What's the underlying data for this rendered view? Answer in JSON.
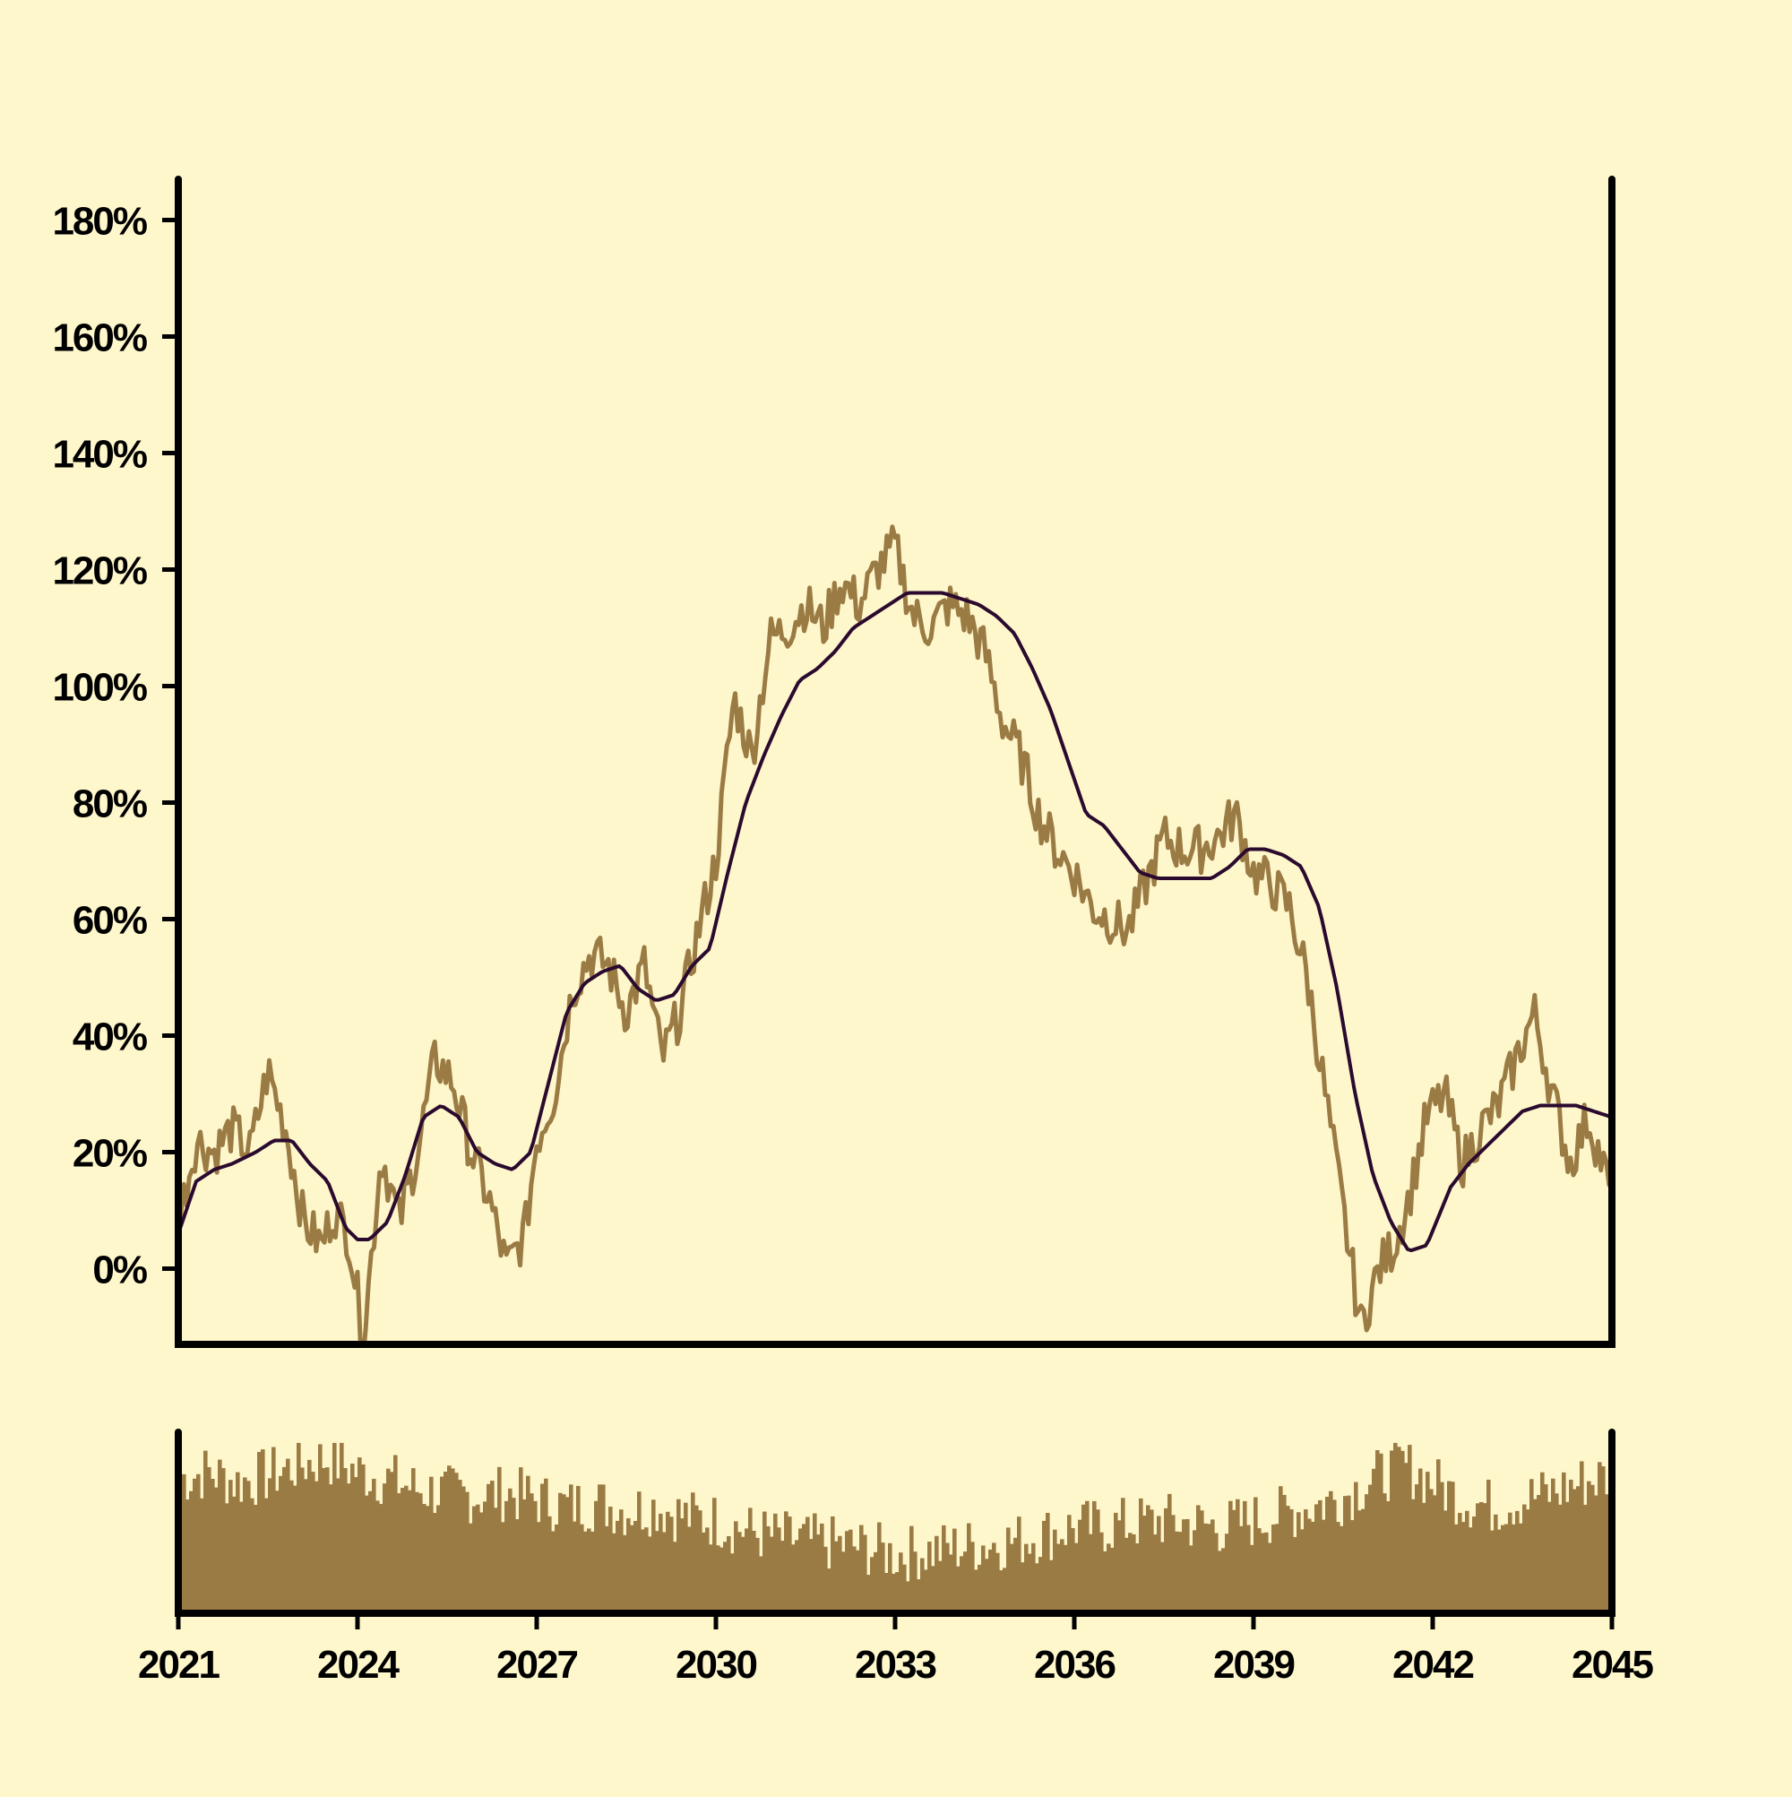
{
  "chart_data": {
    "type": "line",
    "title": "",
    "xlabel": "",
    "ylabel": "",
    "colors": {
      "background": "#fff7cc",
      "price": "#9b7b44",
      "trend": "#2a0a2e",
      "volume": "#9b7b44",
      "axis": "#000000"
    },
    "x_range": [
      2021.0,
      2045.0
    ],
    "ylim": [
      -0.13,
      1.87
    ],
    "y_ticks": [
      0,
      0.2,
      0.4,
      0.6,
      0.8,
      1.0,
      1.2,
      1.4,
      1.6,
      1.8
    ],
    "y_tick_labels": [
      "0%",
      "20%",
      "40%",
      "60%",
      "80%",
      "100%",
      "120%",
      "140%",
      "160%",
      "180%"
    ],
    "x_ticks": [
      2021,
      2024,
      2027,
      2030,
      2033,
      2036,
      2039,
      2042,
      2045
    ],
    "x_tick_labels": [
      "2021",
      "2024",
      "2027",
      "2030",
      "2033",
      "2036",
      "2039",
      "2042",
      "2045"
    ],
    "series": [
      {
        "kind": "price",
        "x": [
          2021.0,
          2021.3,
          2021.6,
          2021.9,
          2022.2,
          2022.5,
          2022.8,
          2023.1,
          2023.4,
          2023.6,
          2023.85,
          2024.1,
          2024.4,
          2024.7,
          2025.0,
          2025.3,
          2025.6,
          2025.9,
          2026.2,
          2026.5,
          2026.8,
          2027.0,
          2027.3,
          2027.6,
          2027.9,
          2028.2,
          2028.5,
          2028.8,
          2029.1,
          2029.4,
          2029.7,
          2030.0,
          2030.3,
          2030.6,
          2030.9,
          2031.2,
          2031.5,
          2031.8,
          2032.1,
          2032.4,
          2032.7,
          2033.0,
          2033.3,
          2033.6,
          2033.9,
          2034.2,
          2034.5,
          2034.8,
          2035.1,
          2035.4,
          2035.7,
          2036.0,
          2036.3,
          2036.6,
          2036.9,
          2037.2,
          2037.5,
          2037.8,
          2038.1,
          2038.4,
          2038.7,
          2039.0,
          2039.3,
          2039.6,
          2039.9,
          2040.2,
          2040.5,
          2040.8,
          2041.1,
          2041.35,
          2041.6,
          2041.9,
          2042.2,
          2042.5,
          2042.8,
          2043.1,
          2043.4,
          2043.7,
          2044.0,
          2044.3,
          2044.6,
          2044.9,
          2045.0
        ],
        "y": [
          0.08,
          0.22,
          0.2,
          0.24,
          0.2,
          0.34,
          0.24,
          0.08,
          0.04,
          0.1,
          0.06,
          -0.12,
          0.2,
          0.08,
          0.2,
          0.36,
          0.32,
          0.2,
          0.12,
          0.0,
          0.06,
          0.22,
          0.3,
          0.48,
          0.54,
          0.52,
          0.44,
          0.52,
          0.36,
          0.44,
          0.58,
          0.7,
          0.98,
          0.88,
          1.08,
          1.1,
          1.14,
          1.1,
          1.18,
          1.14,
          1.2,
          1.24,
          1.12,
          1.1,
          1.14,
          1.12,
          1.06,
          0.94,
          0.88,
          0.78,
          0.72,
          0.68,
          0.62,
          0.6,
          0.58,
          0.66,
          0.74,
          0.72,
          0.72,
          0.74,
          0.78,
          0.68,
          0.66,
          0.62,
          0.5,
          0.3,
          0.1,
          -0.1,
          0.0,
          0.04,
          0.12,
          0.26,
          0.3,
          0.18,
          0.24,
          0.28,
          0.36,
          0.44,
          0.3,
          0.18,
          0.26,
          0.16,
          0.12
        ]
      },
      {
        "kind": "trend",
        "x": [
          2021.0,
          2021.3,
          2021.6,
          2021.9,
          2022.3,
          2022.6,
          2022.9,
          2023.2,
          2023.5,
          2023.8,
          2024.0,
          2024.2,
          2024.5,
          2024.8,
          2025.1,
          2025.4,
          2025.7,
          2026.0,
          2026.3,
          2026.6,
          2026.9,
          2027.2,
          2027.5,
          2027.8,
          2028.1,
          2028.4,
          2028.7,
          2029.0,
          2029.3,
          2029.6,
          2029.9,
          2030.2,
          2030.5,
          2030.8,
          2031.1,
          2031.4,
          2031.7,
          2032.0,
          2032.3,
          2032.6,
          2032.9,
          2033.2,
          2033.5,
          2033.8,
          2034.1,
          2034.4,
          2034.7,
          2035.0,
          2035.3,
          2035.6,
          2035.9,
          2036.2,
          2036.5,
          2036.8,
          2037.1,
          2037.4,
          2037.7,
          2038.0,
          2038.3,
          2038.6,
          2038.9,
          2039.2,
          2039.5,
          2039.8,
          2040.1,
          2040.4,
          2040.7,
          2041.0,
          2041.3,
          2041.6,
          2041.9,
          2042.1,
          2042.3,
          2042.6,
          2042.9,
          2043.2,
          2043.5,
          2043.8,
          2044.1,
          2044.4,
          2044.7,
          2045.0
        ],
        "y": [
          0.06,
          0.15,
          0.17,
          0.18,
          0.2,
          0.22,
          0.22,
          0.18,
          0.15,
          0.07,
          0.05,
          0.05,
          0.08,
          0.16,
          0.26,
          0.28,
          0.26,
          0.2,
          0.18,
          0.17,
          0.2,
          0.32,
          0.44,
          0.49,
          0.51,
          0.52,
          0.48,
          0.46,
          0.47,
          0.52,
          0.55,
          0.68,
          0.8,
          0.88,
          0.95,
          1.01,
          1.03,
          1.06,
          1.1,
          1.12,
          1.14,
          1.16,
          1.16,
          1.16,
          1.15,
          1.14,
          1.12,
          1.09,
          1.03,
          0.96,
          0.87,
          0.78,
          0.76,
          0.72,
          0.68,
          0.67,
          0.67,
          0.67,
          0.67,
          0.69,
          0.72,
          0.72,
          0.71,
          0.69,
          0.62,
          0.48,
          0.3,
          0.16,
          0.08,
          0.03,
          0.04,
          0.09,
          0.14,
          0.18,
          0.21,
          0.24,
          0.27,
          0.28,
          0.28,
          0.28,
          0.27,
          0.26
        ]
      }
    ],
    "volume": {
      "x": [
        2021.0,
        2021.5,
        2022.0,
        2022.5,
        2023.0,
        2023.5,
        2024.0,
        2024.5,
        2025.0,
        2025.5,
        2026.0,
        2026.5,
        2027.0,
        2027.5,
        2028.0,
        2028.5,
        2029.0,
        2029.5,
        2030.0,
        2030.5,
        2031.0,
        2031.5,
        2032.0,
        2032.5,
        2033.0,
        2033.5,
        2034.0,
        2034.5,
        2035.0,
        2035.5,
        2036.0,
        2036.5,
        2037.0,
        2037.5,
        2038.0,
        2038.5,
        2039.0,
        2039.5,
        2040.0,
        2040.5,
        2041.0,
        2041.5,
        2042.0,
        2042.5,
        2043.0,
        2043.5,
        2044.0,
        2044.5,
        2045.0
      ],
      "values": [
        0.78,
        0.82,
        0.76,
        0.8,
        0.86,
        0.9,
        0.82,
        0.78,
        0.72,
        0.7,
        0.68,
        0.7,
        0.66,
        0.62,
        0.64,
        0.6,
        0.62,
        0.56,
        0.54,
        0.48,
        0.44,
        0.42,
        0.4,
        0.38,
        0.34,
        0.36,
        0.38,
        0.4,
        0.42,
        0.46,
        0.5,
        0.5,
        0.52,
        0.54,
        0.52,
        0.5,
        0.54,
        0.58,
        0.62,
        0.68,
        0.78,
        0.86,
        0.76,
        0.66,
        0.62,
        0.66,
        0.7,
        0.76,
        0.8
      ]
    }
  }
}
